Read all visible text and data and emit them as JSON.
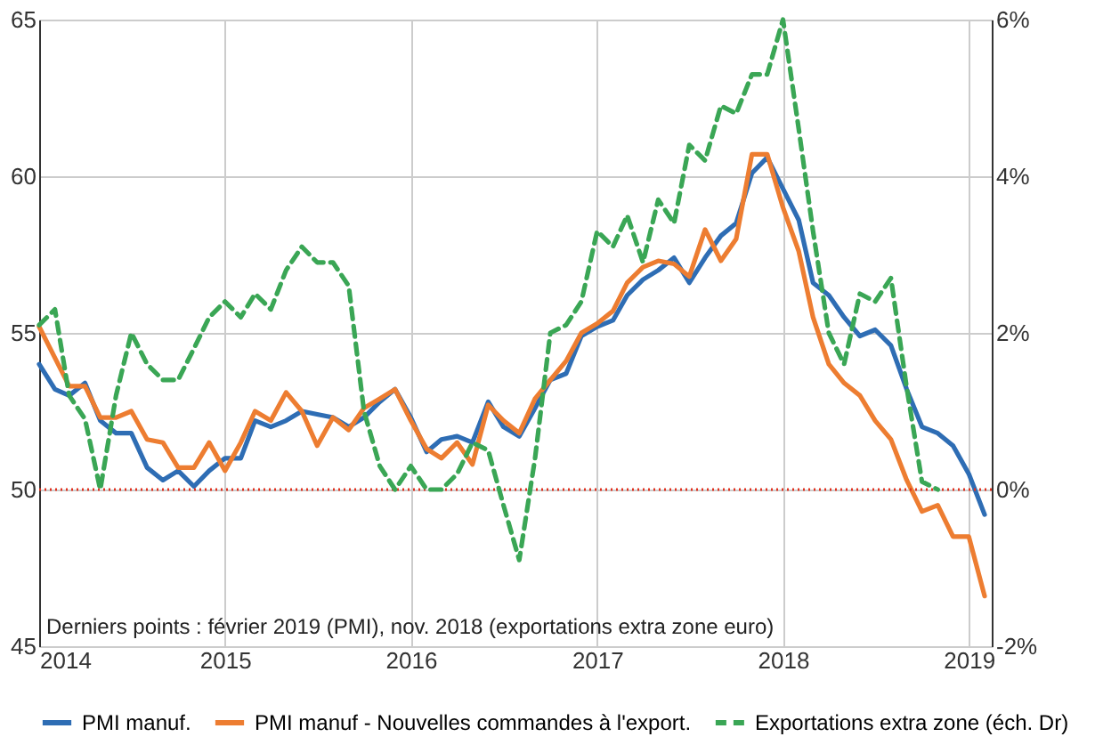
{
  "chart_data": {
    "type": "line",
    "x": [
      "2014-01",
      "2014-02",
      "2014-03",
      "2014-04",
      "2014-05",
      "2014-06",
      "2014-07",
      "2014-08",
      "2014-09",
      "2014-10",
      "2014-11",
      "2014-12",
      "2015-01",
      "2015-02",
      "2015-03",
      "2015-04",
      "2015-05",
      "2015-06",
      "2015-07",
      "2015-08",
      "2015-09",
      "2015-10",
      "2015-11",
      "2015-12",
      "2016-01",
      "2016-02",
      "2016-03",
      "2016-04",
      "2016-05",
      "2016-06",
      "2016-07",
      "2016-08",
      "2016-09",
      "2016-10",
      "2016-11",
      "2016-12",
      "2017-01",
      "2017-02",
      "2017-03",
      "2017-04",
      "2017-05",
      "2017-06",
      "2017-07",
      "2017-08",
      "2017-09",
      "2017-10",
      "2017-11",
      "2017-12",
      "2018-01",
      "2018-02",
      "2018-03",
      "2018-04",
      "2018-05",
      "2018-06",
      "2018-07",
      "2018-08",
      "2018-09",
      "2018-10",
      "2018-11",
      "2018-12",
      "2019-01",
      "2019-02"
    ],
    "series": [
      {
        "name": "PMI manuf.",
        "color": "#2e6db4",
        "line_style": "solid",
        "values": [
          54.0,
          53.2,
          53.0,
          53.4,
          52.2,
          51.8,
          51.8,
          50.7,
          50.3,
          50.6,
          50.1,
          50.6,
          51.0,
          51.0,
          52.2,
          52.0,
          52.2,
          52.5,
          52.4,
          52.3,
          52.0,
          52.3,
          52.8,
          53.2,
          52.3,
          51.2,
          51.6,
          51.7,
          51.5,
          52.8,
          52.0,
          51.7,
          52.6,
          53.5,
          53.7,
          54.9,
          55.2,
          55.4,
          56.2,
          56.7,
          57.0,
          57.4,
          56.6,
          57.4,
          58.1,
          58.5,
          60.1,
          60.6,
          59.6,
          58.6,
          56.6,
          56.2,
          55.5,
          54.9,
          55.1,
          54.6,
          53.2,
          52.0,
          51.8,
          51.4,
          50.5,
          49.2
        ]
      },
      {
        "name": "PMI manuf - Nouvelles commandes à l'export.",
        "color": "#ed7d31",
        "line_style": "solid",
        "values": [
          55.2,
          54.2,
          53.3,
          53.3,
          52.3,
          52.3,
          52.5,
          51.6,
          51.5,
          50.7,
          50.7,
          51.5,
          50.6,
          51.5,
          52.5,
          52.2,
          53.1,
          52.5,
          51.4,
          52.3,
          51.9,
          52.6,
          52.9,
          53.2,
          52.2,
          51.3,
          51.0,
          51.5,
          50.8,
          52.7,
          52.2,
          51.8,
          52.9,
          53.5,
          54.1,
          55.0,
          55.3,
          55.7,
          56.6,
          57.1,
          57.3,
          57.2,
          56.8,
          58.3,
          57.3,
          58.0,
          60.7,
          60.7,
          59.0,
          57.6,
          55.5,
          54.0,
          53.4,
          53.0,
          52.2,
          51.6,
          50.3,
          49.3,
          49.5,
          48.5,
          48.5,
          46.6
        ]
      },
      {
        "name": "Exportations extra zone (éch. Dr)",
        "color": "#3aa655",
        "line_style": "dashed",
        "axis": "y2",
        "values": [
          2.1,
          2.3,
          1.2,
          0.9,
          0.0,
          1.2,
          2.0,
          1.6,
          1.4,
          1.4,
          1.8,
          2.2,
          2.4,
          2.2,
          2.5,
          2.3,
          2.8,
          3.1,
          2.9,
          2.9,
          2.6,
          1.0,
          0.3,
          0.0,
          0.3,
          0.0,
          0.0,
          0.2,
          0.6,
          0.5,
          -0.2,
          -0.9,
          0.4,
          2.0,
          2.1,
          2.4,
          3.3,
          3.1,
          3.5,
          2.9,
          3.7,
          3.4,
          4.4,
          4.2,
          4.9,
          4.8,
          5.3,
          5.3,
          6.0,
          4.6,
          3.3,
          2.0,
          1.6,
          2.5,
          2.4,
          2.7,
          1.3,
          0.1,
          0.0,
          null,
          null,
          null
        ]
      }
    ],
    "xlim": [
      "2014-01-01",
      "2019-02-15"
    ],
    "xticks": [
      {
        "value": "2014-01-01",
        "label": "2014"
      },
      {
        "value": "2015-01-01",
        "label": "2015"
      },
      {
        "value": "2016-01-01",
        "label": "2016"
      },
      {
        "value": "2017-01-01",
        "label": "2017"
      },
      {
        "value": "2018-01-01",
        "label": "2018"
      },
      {
        "value": "2019-01-01",
        "label": "2019"
      }
    ],
    "ylim": [
      45,
      65
    ],
    "yticks": [
      45,
      50,
      55,
      60,
      65
    ],
    "y2lim": [
      -2,
      6
    ],
    "y2ticks": [
      {
        "value": -2,
        "label": "-2%"
      },
      {
        "value": 0,
        "label": "0%"
      },
      {
        "value": 2,
        "label": "2%"
      },
      {
        "value": 4,
        "label": "4%"
      },
      {
        "value": 6,
        "label": "6%"
      }
    ],
    "ref_lines": [
      {
        "axis": "y",
        "value": 50,
        "color": "#e0301e",
        "line_style": "dotted"
      }
    ],
    "annotations": [
      "Derniers points : février 2019 (PMI), nov. 2018 (exportations extra zone euro)"
    ],
    "grid": true,
    "legend": "bottom",
    "marker": "none"
  }
}
